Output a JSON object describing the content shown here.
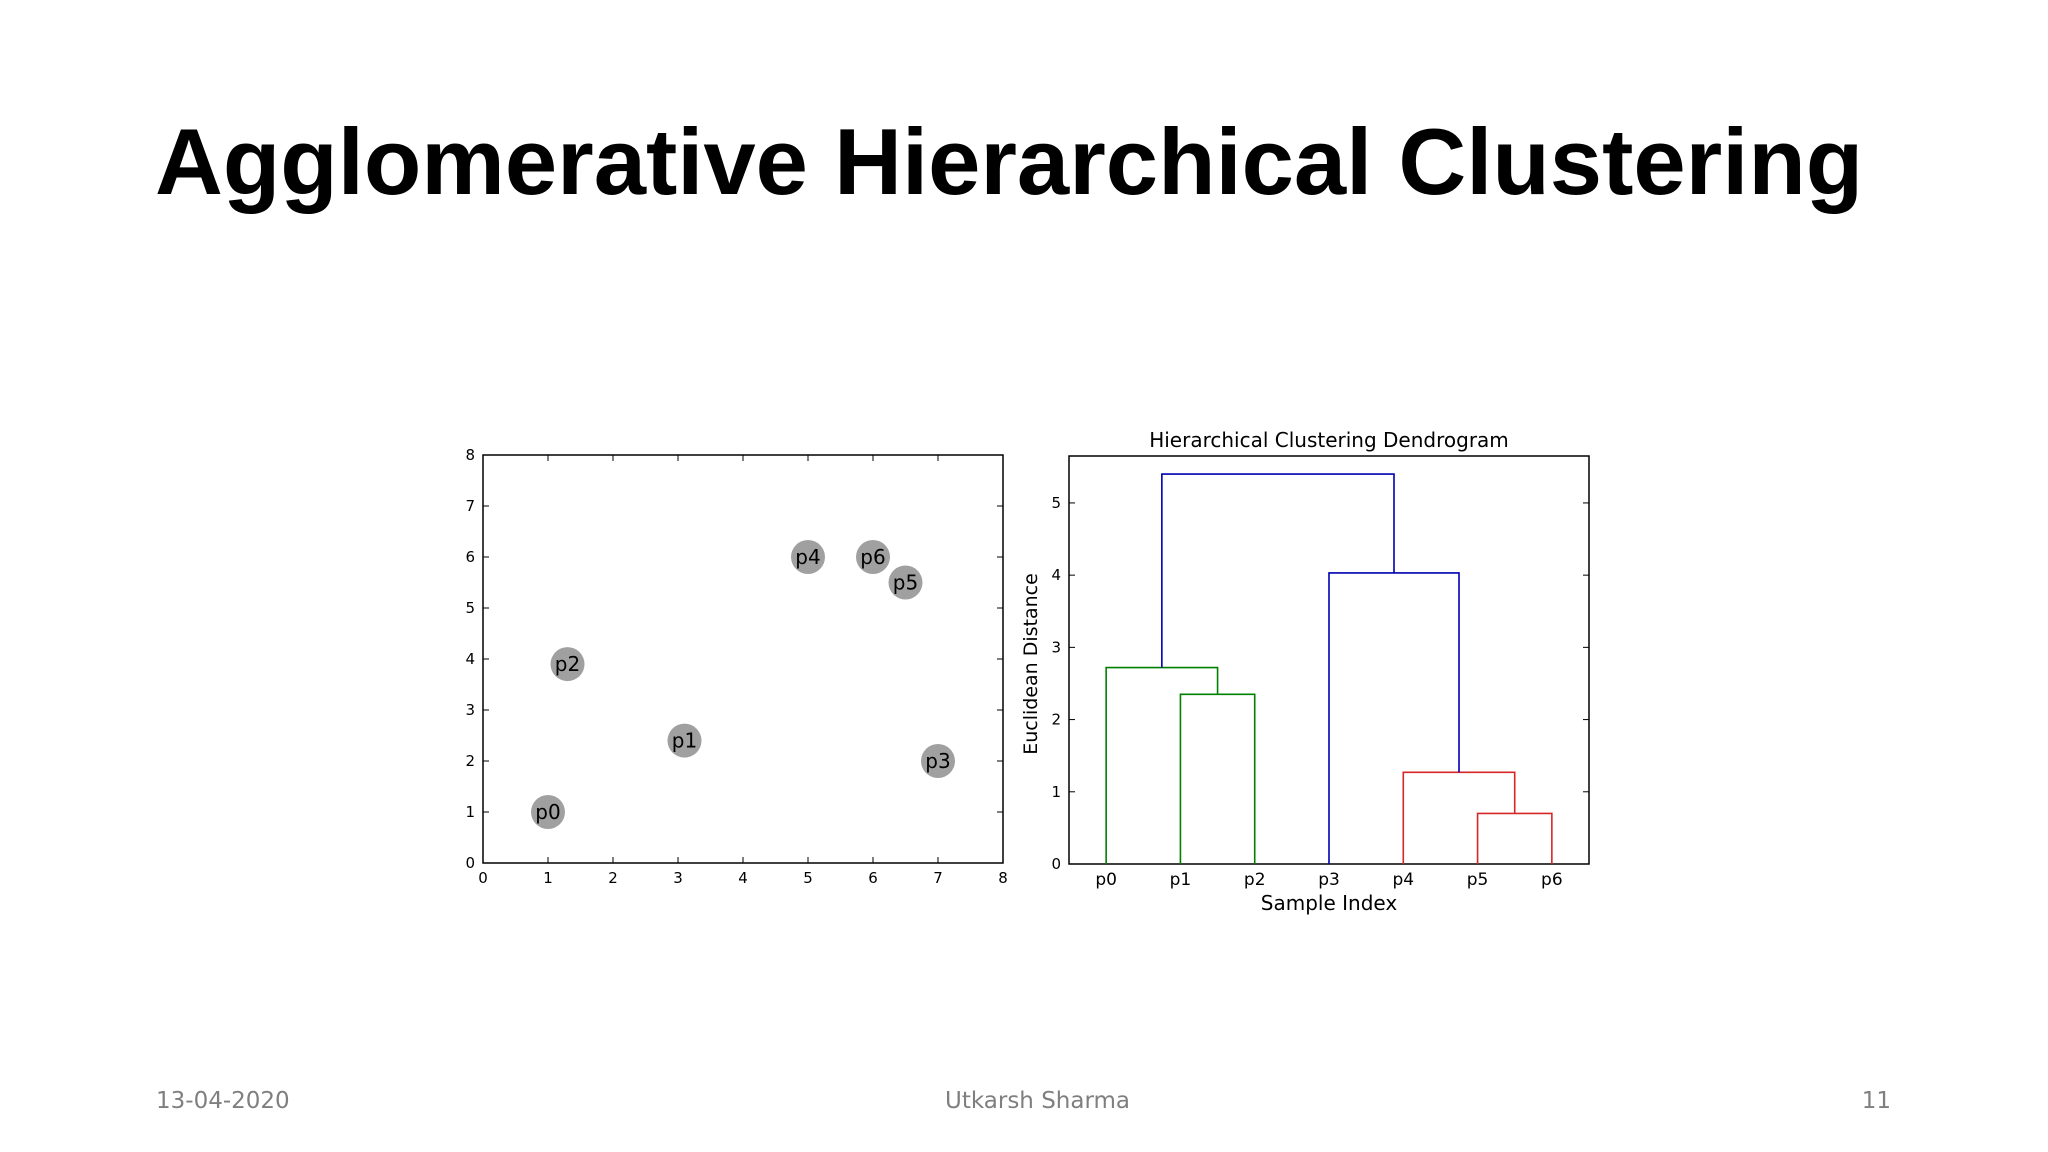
{
  "slide": {
    "title": "Agglomerative Hierarchical Clustering",
    "footer": {
      "date": "13-04-2020",
      "author": "Utkarsh Sharma",
      "page": "11"
    }
  },
  "chart_data": [
    {
      "type": "scatter",
      "title": "",
      "xlim": [
        0,
        8
      ],
      "ylim": [
        0,
        8
      ],
      "x_ticks": [
        "0",
        "1",
        "2",
        "3",
        "4",
        "5",
        "6",
        "7",
        "8"
      ],
      "y_ticks": [
        "0",
        "1",
        "2",
        "3",
        "4",
        "5",
        "6",
        "7",
        "8"
      ],
      "grid": false,
      "marker_color": "#a0a0a0",
      "points": [
        {
          "label": "p0",
          "x": 1.0,
          "y": 1.0
        },
        {
          "label": "p1",
          "x": 3.1,
          "y": 2.4
        },
        {
          "label": "p2",
          "x": 1.3,
          "y": 3.9
        },
        {
          "label": "p3",
          "x": 7.0,
          "y": 2.0
        },
        {
          "label": "p4",
          "x": 5.0,
          "y": 6.0
        },
        {
          "label": "p5",
          "x": 6.5,
          "y": 5.5
        },
        {
          "label": "p6",
          "x": 6.0,
          "y": 6.0
        }
      ]
    },
    {
      "type": "dendrogram",
      "title": "Hierarchical Clustering Dendrogram",
      "xlabel": "Sample Index",
      "ylabel": "Euclidean Distance",
      "ylim": [
        0,
        5.65
      ],
      "y_ticks": [
        "0",
        "1",
        "2",
        "3",
        "4",
        "5"
      ],
      "leaves": [
        "p0",
        "p1",
        "p2",
        "p3",
        "p4",
        "p5",
        "p6"
      ],
      "colors": {
        "green": "#008000",
        "red": "#d62728",
        "blue": "#0000b0"
      },
      "links": [
        {
          "x": [
            5,
            5,
            6,
            6
          ],
          "y": [
            0,
            0.7,
            0.7,
            0
          ],
          "color": "red"
        },
        {
          "x": [
            4,
            4,
            5.5,
            5.5
          ],
          "y": [
            0,
            1.27,
            1.27,
            0.7
          ],
          "color": "red"
        },
        {
          "x": [
            1,
            1,
            2,
            2
          ],
          "y": [
            0,
            2.35,
            2.35,
            0
          ],
          "color": "green"
        },
        {
          "x": [
            0,
            0,
            1.5,
            1.5
          ],
          "y": [
            0,
            2.72,
            2.72,
            2.35
          ],
          "color": "green"
        },
        {
          "x": [
            3,
            3,
            4.75,
            4.75
          ],
          "y": [
            0,
            4.03,
            4.03,
            1.27
          ],
          "color": "blue"
        },
        {
          "x": [
            0.75,
            0.75,
            3.875,
            3.875
          ],
          "y": [
            2.72,
            5.4,
            5.4,
            4.03
          ],
          "color": "blue"
        }
      ]
    }
  ]
}
